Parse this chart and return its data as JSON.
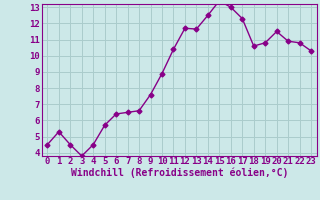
{
  "x": [
    0,
    1,
    2,
    3,
    4,
    5,
    6,
    7,
    8,
    9,
    10,
    11,
    12,
    13,
    14,
    15,
    16,
    17,
    18,
    19,
    20,
    21,
    22,
    23
  ],
  "y": [
    4.5,
    5.3,
    4.5,
    3.8,
    4.5,
    5.7,
    6.4,
    6.5,
    6.6,
    7.6,
    8.9,
    10.4,
    11.7,
    11.65,
    12.5,
    13.4,
    13.0,
    12.3,
    10.6,
    10.8,
    11.5,
    10.9,
    10.8,
    10.3
  ],
  "line_color": "#880088",
  "marker": "D",
  "marker_size": 2.5,
  "bg_color": "#cce8e8",
  "grid_color": "#aacccc",
  "xlabel": "Windchill (Refroidissement éolien,°C)",
  "ylim": [
    4,
    13
  ],
  "xlim": [
    -0.5,
    23.5
  ],
  "yticks": [
    4,
    5,
    6,
    7,
    8,
    9,
    10,
    11,
    12,
    13
  ],
  "xticks": [
    0,
    1,
    2,
    3,
    4,
    5,
    6,
    7,
    8,
    9,
    10,
    11,
    12,
    13,
    14,
    15,
    16,
    17,
    18,
    19,
    20,
    21,
    22,
    23
  ],
  "tick_label_fontsize": 6.5,
  "xlabel_fontsize": 7,
  "label_color": "#880088",
  "spine_color": "#880088",
  "line_width": 1.0
}
